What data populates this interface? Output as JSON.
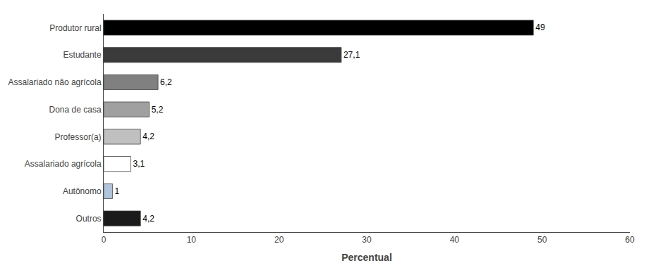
{
  "chart_data": {
    "type": "bar",
    "orientation": "horizontal",
    "categories": [
      "Outros",
      "Autônomo",
      "Assalariado agrícola",
      "Professor(a)",
      "Dona de casa",
      "Assalariado não agrícola",
      "Estudante",
      "Produtor rural"
    ],
    "values": [
      4.2,
      1.0,
      3.1,
      4.2,
      5.2,
      6.2,
      27.1,
      49.0
    ],
    "value_labels": [
      "4,2",
      "1",
      "3,1",
      "4,2",
      "5,2",
      "6,2",
      "27,1",
      "49"
    ],
    "data_labels": true,
    "colors": [
      "#1a1a1a",
      "#b0c4de",
      "#ffffff",
      "#c0c0c0",
      "#a0a0a0",
      "#808080",
      "#3a3a3a",
      "#000000"
    ],
    "xlabel": "Percentual",
    "xlim": [
      0,
      60
    ],
    "xticks": [
      0,
      10,
      20,
      30,
      40,
      50,
      60
    ],
    "grid": false
  }
}
